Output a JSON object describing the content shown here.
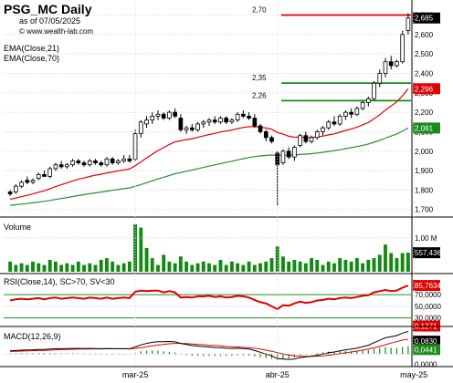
{
  "header": {
    "title": "PSG_MC Daily",
    "date": "as of 07/05/2025",
    "site": "© www.wealth-lab.com",
    "ema_labels": [
      "EMA(Close,21)",
      "EMA(Close,70)"
    ]
  },
  "colors": {
    "up_candle": "#ffffff",
    "down_candle": "#000000",
    "ema21": "#e00000",
    "ema70": "#2e8b2e",
    "volume": "#118a11",
    "rsi": "#e00000",
    "rsi_bands": "#228b22",
    "macd_hist": "#1a8a1a",
    "macd_line": "#000000",
    "signal_line": "#e00000",
    "level_red": "#e00000",
    "level_green": "#1a8a1a",
    "close_badge": "#000000",
    "ema21_badge": "#e00000",
    "ema70_badge": "#1a8a1a"
  },
  "chart_data": [
    {
      "type": "candlestick",
      "title": "PSG_MC Daily",
      "y_ticks": [
        "1,700",
        "1,800",
        "1,900",
        "2,000",
        "2,100",
        "2,200",
        "2,300",
        "2,400",
        "2,500",
        "2,600",
        "2,700"
      ],
      "ylim": [
        1.68,
        2.74
      ],
      "x_ticks": [
        "mar-25",
        "abr-25",
        "may-25"
      ],
      "x_tick_index": [
        22,
        47,
        71
      ],
      "last_close_label": "2,685",
      "ema21_label": "2,296",
      "ema70_label": "2,081",
      "levels": [
        {
          "label": "2,70",
          "value": 2.7,
          "color": "red"
        },
        {
          "label": "2,35",
          "value": 2.35,
          "color": "green"
        },
        {
          "label": "2,26",
          "value": 2.26,
          "color": "green"
        }
      ],
      "ohlc": [
        [
          1.79,
          1.8,
          1.77,
          1.78
        ],
        [
          1.79,
          1.83,
          1.78,
          1.82
        ],
        [
          1.82,
          1.85,
          1.81,
          1.84
        ],
        [
          1.85,
          1.87,
          1.83,
          1.84
        ],
        [
          1.84,
          1.86,
          1.83,
          1.85
        ],
        [
          1.86,
          1.89,
          1.85,
          1.88
        ],
        [
          1.88,
          1.9,
          1.87,
          1.87
        ],
        [
          1.87,
          1.92,
          1.86,
          1.91
        ],
        [
          1.91,
          1.94,
          1.9,
          1.93
        ],
        [
          1.93,
          1.95,
          1.91,
          1.92
        ],
        [
          1.92,
          1.94,
          1.91,
          1.93
        ],
        [
          1.93,
          1.96,
          1.92,
          1.95
        ],
        [
          1.95,
          1.96,
          1.93,
          1.94
        ],
        [
          1.94,
          1.95,
          1.92,
          1.93
        ],
        [
          1.93,
          1.96,
          1.92,
          1.95
        ],
        [
          1.95,
          1.96,
          1.93,
          1.94
        ],
        [
          1.94,
          1.95,
          1.92,
          1.93
        ],
        [
          1.93,
          1.97,
          1.92,
          1.96
        ],
        [
          1.96,
          1.97,
          1.93,
          1.94
        ],
        [
          1.94,
          1.96,
          1.93,
          1.95
        ],
        [
          1.95,
          1.98,
          1.94,
          1.96
        ],
        [
          1.96,
          1.98,
          1.94,
          1.95
        ],
        [
          1.96,
          2.11,
          1.95,
          2.09
        ],
        [
          2.09,
          2.16,
          2.07,
          2.15
        ],
        [
          2.14,
          2.18,
          2.12,
          2.16
        ],
        [
          2.16,
          2.2,
          2.14,
          2.18
        ],
        [
          2.18,
          2.21,
          2.16,
          2.19
        ],
        [
          2.19,
          2.2,
          2.16,
          2.17
        ],
        [
          2.17,
          2.21,
          2.16,
          2.2
        ],
        [
          2.2,
          2.22,
          2.17,
          2.18
        ],
        [
          2.17,
          2.19,
          2.1,
          2.11
        ],
        [
          2.11,
          2.13,
          2.09,
          2.12
        ],
        [
          2.12,
          2.14,
          2.1,
          2.11
        ],
        [
          2.11,
          2.15,
          2.1,
          2.14
        ],
        [
          2.14,
          2.16,
          2.12,
          2.15
        ],
        [
          2.15,
          2.17,
          2.13,
          2.16
        ],
        [
          2.16,
          2.18,
          2.14,
          2.15
        ],
        [
          2.15,
          2.18,
          2.14,
          2.17
        ],
        [
          2.17,
          2.18,
          2.14,
          2.15
        ],
        [
          2.15,
          2.17,
          2.14,
          2.16
        ],
        [
          2.16,
          2.2,
          2.15,
          2.19
        ],
        [
          2.19,
          2.21,
          2.17,
          2.18
        ],
        [
          2.18,
          2.2,
          2.16,
          2.17
        ],
        [
          2.17,
          2.19,
          2.12,
          2.13
        ],
        [
          2.13,
          2.14,
          2.09,
          2.1
        ],
        [
          2.1,
          2.11,
          2.05,
          2.07
        ],
        [
          2.07,
          2.08,
          2.04,
          2.05
        ],
        [
          1.99,
          2.0,
          1.72,
          1.93
        ],
        [
          1.94,
          2.01,
          1.93,
          2.0
        ],
        [
          2.0,
          2.02,
          1.96,
          1.97
        ],
        [
          1.97,
          2.03,
          1.95,
          2.02
        ],
        [
          2.03,
          2.09,
          2.02,
          2.08
        ],
        [
          2.08,
          2.1,
          2.04,
          2.05
        ],
        [
          2.05,
          2.08,
          2.04,
          2.07
        ],
        [
          2.07,
          2.11,
          2.06,
          2.1
        ],
        [
          2.1,
          2.13,
          2.08,
          2.12
        ],
        [
          2.12,
          2.16,
          2.11,
          2.15
        ],
        [
          2.15,
          2.18,
          2.13,
          2.14
        ],
        [
          2.14,
          2.19,
          2.13,
          2.18
        ],
        [
          2.18,
          2.21,
          2.16,
          2.2
        ],
        [
          2.2,
          2.22,
          2.17,
          2.19
        ],
        [
          2.19,
          2.23,
          2.18,
          2.22
        ],
        [
          2.22,
          2.26,
          2.21,
          2.25
        ],
        [
          2.25,
          2.28,
          2.23,
          2.27
        ],
        [
          2.27,
          2.36,
          2.26,
          2.35
        ],
        [
          2.35,
          2.42,
          2.33,
          2.4
        ],
        [
          2.4,
          2.48,
          2.38,
          2.46
        ],
        [
          2.46,
          2.49,
          2.42,
          2.44
        ],
        [
          2.44,
          2.47,
          2.43,
          2.46
        ],
        [
          2.46,
          2.62,
          2.45,
          2.6
        ],
        [
          2.62,
          2.71,
          2.6,
          2.685
        ]
      ]
    },
    {
      "type": "bar",
      "title": "Volume",
      "y_ticks": [
        "1,00 M"
      ],
      "last_value_label": "557,436",
      "values": [
        0.3,
        0.2,
        0.25,
        0.2,
        0.3,
        0.25,
        0.2,
        0.35,
        0.3,
        0.2,
        0.25,
        0.2,
        0.3,
        0.2,
        0.25,
        0.2,
        0.35,
        0.4,
        0.3,
        0.2,
        0.25,
        0.3,
        1.4,
        1.3,
        0.7,
        0.4,
        0.2,
        0.5,
        0.3,
        0.25,
        0.45,
        0.3,
        0.2,
        0.25,
        0.3,
        0.25,
        0.2,
        0.35,
        0.2,
        0.3,
        0.25,
        0.2,
        0.3,
        0.2,
        0.25,
        0.3,
        0.4,
        0.75,
        0.45,
        0.3,
        0.35,
        0.3,
        0.25,
        0.4,
        0.35,
        0.2,
        0.3,
        0.25,
        0.4,
        0.35,
        0.3,
        0.4,
        0.25,
        0.35,
        0.4,
        0.5,
        0.8,
        0.55,
        0.4,
        0.55,
        0.56
      ],
      "ylim": [
        0,
        1.45
      ]
    },
    {
      "type": "line",
      "title": "RSI(Close,14), SC>70, SV<30",
      "y_ticks": [
        "70,0000",
        "50,0000",
        "30,0000"
      ],
      "ylim": [
        20,
        100
      ],
      "bands": [
        70,
        30
      ],
      "last_value_label": "85,7634",
      "values": [
        60,
        62,
        63,
        62,
        63,
        64,
        62,
        64,
        65,
        63,
        64,
        65,
        64,
        63,
        65,
        64,
        63,
        65,
        63,
        64,
        65,
        64,
        75,
        77,
        76,
        77,
        77,
        74,
        76,
        74,
        65,
        66,
        65,
        67,
        67,
        68,
        66,
        67,
        65,
        66,
        68,
        67,
        65,
        61,
        57,
        55,
        50,
        45,
        52,
        51,
        55,
        58,
        56,
        57,
        60,
        61,
        63,
        62,
        64,
        65,
        64,
        66,
        68,
        69,
        74,
        76,
        78,
        76,
        77,
        82,
        85.76
      ]
    },
    {
      "type": "line",
      "title": "MACD(12,26,9)",
      "y_ticks": [
        "0,0000"
      ],
      "ylim": [
        -0.055,
        0.135
      ],
      "macd_label": "0,1271",
      "signal_label": "0,0830",
      "hist_label": "0,0441",
      "macd": [
        0.018,
        0.02,
        0.022,
        0.023,
        0.024,
        0.026,
        0.026,
        0.028,
        0.03,
        0.03,
        0.031,
        0.032,
        0.032,
        0.031,
        0.032,
        0.031,
        0.03,
        0.031,
        0.03,
        0.03,
        0.03,
        0.029,
        0.04,
        0.052,
        0.06,
        0.066,
        0.07,
        0.07,
        0.071,
        0.069,
        0.06,
        0.054,
        0.048,
        0.045,
        0.042,
        0.04,
        0.037,
        0.036,
        0.033,
        0.032,
        0.033,
        0.031,
        0.028,
        0.02,
        0.01,
        0.0,
        -0.01,
        -0.025,
        -0.028,
        -0.03,
        -0.028,
        -0.02,
        -0.016,
        -0.012,
        -0.006,
        0.0,
        0.008,
        0.012,
        0.018,
        0.024,
        0.028,
        0.034,
        0.042,
        0.05,
        0.064,
        0.078,
        0.092,
        0.098,
        0.104,
        0.118,
        0.1271
      ],
      "signal": [
        0.015,
        0.016,
        0.017,
        0.018,
        0.019,
        0.02,
        0.021,
        0.022,
        0.024,
        0.025,
        0.026,
        0.027,
        0.028,
        0.028,
        0.029,
        0.029,
        0.029,
        0.03,
        0.03,
        0.03,
        0.03,
        0.03,
        0.032,
        0.036,
        0.041,
        0.046,
        0.051,
        0.055,
        0.058,
        0.06,
        0.06,
        0.059,
        0.057,
        0.055,
        0.053,
        0.05,
        0.048,
        0.046,
        0.043,
        0.041,
        0.04,
        0.038,
        0.036,
        0.033,
        0.028,
        0.022,
        0.016,
        0.008,
        0.001,
        -0.005,
        -0.01,
        -0.012,
        -0.013,
        -0.013,
        -0.012,
        -0.01,
        -0.006,
        -0.002,
        0.002,
        0.007,
        0.012,
        0.017,
        0.022,
        0.028,
        0.035,
        0.043,
        0.053,
        0.062,
        0.07,
        0.079,
        0.083
      ]
    }
  ]
}
